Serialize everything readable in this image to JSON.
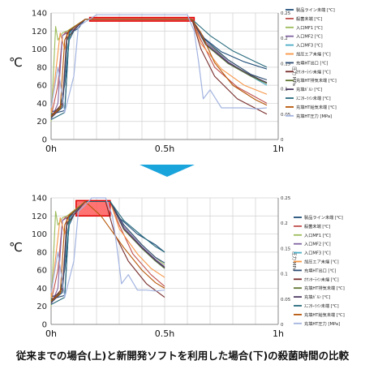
{
  "caption": "従来までの場合(上)と新開発ソフトを利用した場合(下)の殺菌時間の比較",
  "colors": {
    "arrow": "#1aa4dc",
    "highlight_fill": "#ff5a5a",
    "highlight_stroke": "#e00000",
    "grid": "#d0d0d0",
    "axis": "#888888"
  },
  "chart_data": [
    {
      "type": "line",
      "ylabel": "℃",
      "ylim": [
        0,
        140
      ],
      "yticks": [
        0,
        20,
        40,
        60,
        80,
        100,
        120,
        140
      ],
      "xlim": [
        0,
        1
      ],
      "xticks": [
        {
          "v": 0,
          "label": "0h"
        },
        {
          "v": 0.5,
          "label": "0.5h"
        },
        {
          "v": 1,
          "label": "1h"
        }
      ],
      "y2label": "圧力 MPa",
      "y2lim": [
        0,
        0.25
      ],
      "y2ticks": [
        "0",
        "0.05",
        "0.1",
        "0.15",
        "0.2",
        "0.25"
      ],
      "highlight": {
        "x": [
          0.17,
          0.63
        ],
        "y": [
          131,
          135
        ]
      },
      "series": [
        {
          "name": "製品ライン未端 [℃]",
          "color": "#1f4e79",
          "x": [
            0,
            0.04,
            0.06,
            0.08,
            0.1,
            0.12,
            0.15,
            0.62,
            0.66,
            0.75,
            0.85,
            0.95
          ],
          "y": [
            30,
            35,
            60,
            110,
            120,
            123,
            133,
            133,
            115,
            97,
            86,
            78
          ]
        },
        {
          "name": "殺菌未端 [℃]",
          "color": "#c0504d",
          "x": [
            0,
            0.03,
            0.05,
            0.07,
            0.1,
            0.15,
            0.62,
            0.66,
            0.72,
            0.82,
            0.95
          ],
          "y": [
            25,
            60,
            115,
            120,
            122,
            133,
            133,
            110,
            80,
            58,
            40
          ]
        },
        {
          "name": "入口MF1 [℃]",
          "color": "#9bbb59",
          "x": [
            0,
            0.02,
            0.03,
            0.05,
            0.07,
            0.15,
            0.62,
            0.68,
            0.78,
            0.88,
            0.95
          ],
          "y": [
            20,
            125,
            110,
            118,
            120,
            133,
            133,
            108,
            88,
            72,
            62
          ]
        },
        {
          "name": "入口MF2 [℃]",
          "color": "#8064a2",
          "x": [
            0,
            0.03,
            0.05,
            0.07,
            0.1,
            0.15,
            0.62,
            0.68,
            0.78,
            0.88,
            0.95
          ],
          "y": [
            22,
            40,
            115,
            118,
            121,
            133,
            133,
            108,
            86,
            70,
            62
          ]
        },
        {
          "name": "入口MF3 [℃]",
          "color": "#4bacc6",
          "x": [
            0,
            0.05,
            0.07,
            0.09,
            0.15,
            0.62,
            0.68,
            0.78,
            0.88,
            0.95
          ],
          "y": [
            25,
            35,
            100,
            122,
            133,
            133,
            106,
            84,
            70,
            60
          ]
        },
        {
          "name": "加圧エア未端 [℃]",
          "color": "#f79646",
          "x": [
            0,
            0.04,
            0.06,
            0.08,
            0.15,
            0.62,
            0.66,
            0.75,
            0.85,
            0.95
          ],
          "y": [
            30,
            118,
            100,
            120,
            133,
            133,
            106,
            78,
            60,
            50
          ]
        },
        {
          "name": "充填HT出口 [℃]",
          "color": "#2c4d75",
          "x": [
            0,
            0.06,
            0.08,
            0.1,
            0.15,
            0.62,
            0.68,
            0.78,
            0.88,
            0.95
          ],
          "y": [
            28,
            32,
            120,
            124,
            133,
            133,
            110,
            88,
            72,
            66
          ]
        },
        {
          "name": "ｶｳﾝﾀｰﾗｲﾝ未端 [℃]",
          "color": "#772c2a",
          "x": [
            0,
            0.05,
            0.07,
            0.09,
            0.15,
            0.62,
            0.66,
            0.72,
            0.82,
            0.95
          ],
          "y": [
            26,
            40,
            118,
            122,
            133,
            133,
            100,
            70,
            45,
            28
          ]
        },
        {
          "name": "充填HT排気未端 [℃]",
          "color": "#5f7530",
          "x": [
            0,
            0.05,
            0.07,
            0.1,
            0.15,
            0.62,
            0.68,
            0.78,
            0.88,
            0.95
          ],
          "y": [
            25,
            38,
            110,
            121,
            133,
            133,
            105,
            84,
            70,
            62
          ]
        },
        {
          "name": "充填ｶﾞﾙﾝ [℃]",
          "color": "#4d3b62",
          "x": [
            0,
            0.05,
            0.07,
            0.1,
            0.15,
            0.62,
            0.68,
            0.78,
            0.88,
            0.95
          ],
          "y": [
            24,
            36,
            112,
            121,
            133,
            133,
            106,
            85,
            71,
            63
          ]
        },
        {
          "name": "ｽﾆﾌﾀｰﾗｲﾝ未端 [℃]",
          "color": "#276a7c",
          "x": [
            0,
            0.06,
            0.08,
            0.1,
            0.15,
            0.62,
            0.7,
            0.8,
            0.9,
            0.95
          ],
          "y": [
            22,
            30,
            118,
            124,
            133,
            133,
            115,
            98,
            86,
            80
          ]
        },
        {
          "name": "充填HT給気未端 [℃]",
          "color": "#b65708",
          "x": [
            0,
            0.04,
            0.06,
            0.08,
            0.15,
            0.62,
            0.66,
            0.72,
            0.8,
            0.9,
            0.95
          ],
          "y": [
            26,
            34,
            110,
            121,
            133,
            133,
            118,
            85,
            60,
            44,
            38
          ]
        },
        {
          "name": "充填HT圧力 [MPa]",
          "color": "#a3b4e0",
          "x": [
            0,
            0.03,
            0.06,
            0.1,
            0.12,
            0.15,
            0.2,
            0.4,
            0.6,
            0.63,
            0.65,
            0.67,
            0.7,
            0.75,
            0.8,
            0.85,
            0.9,
            0.95
          ],
          "y": [
            35,
            80,
            30,
            70,
            125,
            130,
            138,
            138,
            138,
            120,
            85,
            45,
            55,
            35,
            35,
            35,
            34,
            35
          ]
        }
      ]
    },
    {
      "type": "line",
      "ylabel": "℃",
      "ylim": [
        0,
        140
      ],
      "yticks": [
        0,
        20,
        40,
        60,
        80,
        100,
        120,
        140
      ],
      "xlim": [
        0,
        1
      ],
      "xticks": [
        {
          "v": 0,
          "label": "0h"
        },
        {
          "v": 0.5,
          "label": "0.5h"
        },
        {
          "v": 1,
          "label": "1h"
        }
      ],
      "y2label": "圧力 MPa",
      "y2lim": [
        0,
        0.25
      ],
      "y2ticks": [
        "0",
        "0.05",
        "0.1",
        "0.15",
        "0.2",
        "0.25"
      ],
      "highlight": {
        "x": [
          0.11,
          0.26
        ],
        "y": [
          120,
          137
        ]
      },
      "series": [
        {
          "name": "製品ライン未端 [℃]",
          "color": "#1f4e79",
          "x": [
            0,
            0.04,
            0.06,
            0.08,
            0.1,
            0.15,
            0.26,
            0.3,
            0.38,
            0.46,
            0.5
          ],
          "y": [
            30,
            35,
            60,
            110,
            121,
            136,
            136,
            118,
            100,
            88,
            80
          ]
        },
        {
          "name": "殺菌未端 [℃]",
          "color": "#c0504d",
          "x": [
            0,
            0.03,
            0.05,
            0.07,
            0.1,
            0.15,
            0.26,
            0.3,
            0.36,
            0.44,
            0.5
          ],
          "y": [
            25,
            60,
            115,
            120,
            122,
            136,
            136,
            110,
            78,
            55,
            42
          ]
        },
        {
          "name": "入口MF1 [℃]",
          "color": "#9bbb59",
          "x": [
            0,
            0.02,
            0.03,
            0.05,
            0.07,
            0.15,
            0.26,
            0.32,
            0.4,
            0.46,
            0.5
          ],
          "y": [
            20,
            125,
            110,
            118,
            120,
            136,
            136,
            110,
            88,
            74,
            66
          ]
        },
        {
          "name": "入口MF2 [℃]",
          "color": "#8064a2",
          "x": [
            0,
            0.03,
            0.05,
            0.07,
            0.1,
            0.15,
            0.26,
            0.32,
            0.4,
            0.46,
            0.5
          ],
          "y": [
            22,
            40,
            115,
            118,
            121,
            136,
            136,
            108,
            86,
            72,
            64
          ]
        },
        {
          "name": "入口MF3 [℃]",
          "color": "#4bacc6",
          "x": [
            0,
            0.05,
            0.07,
            0.09,
            0.15,
            0.26,
            0.32,
            0.4,
            0.46,
            0.5
          ],
          "y": [
            25,
            35,
            100,
            122,
            136,
            136,
            106,
            84,
            70,
            62
          ]
        },
        {
          "name": "加圧エア未端 [℃]",
          "color": "#f79646",
          "x": [
            0,
            0.04,
            0.06,
            0.08,
            0.15,
            0.26,
            0.3,
            0.38,
            0.44,
            0.5
          ],
          "y": [
            30,
            118,
            100,
            120,
            136,
            136,
            106,
            78,
            62,
            52
          ]
        },
        {
          "name": "充填HT出口 [℃]",
          "color": "#2c4d75",
          "x": [
            0,
            0.06,
            0.08,
            0.1,
            0.15,
            0.26,
            0.32,
            0.4,
            0.46,
            0.5
          ],
          "y": [
            28,
            32,
            120,
            124,
            136,
            136,
            110,
            88,
            74,
            68
          ]
        },
        {
          "name": "ｶｳﾝﾀｰﾗｲﾝ未端 [℃]",
          "color": "#772c2a",
          "x": [
            0,
            0.05,
            0.07,
            0.09,
            0.15,
            0.24,
            0.28,
            0.34,
            0.42,
            0.5
          ],
          "y": [
            26,
            40,
            118,
            122,
            136,
            136,
            100,
            70,
            45,
            30
          ]
        },
        {
          "name": "充填HT排気未端 [℃]",
          "color": "#5f7530",
          "x": [
            0,
            0.05,
            0.07,
            0.1,
            0.15,
            0.26,
            0.32,
            0.4,
            0.46,
            0.5
          ],
          "y": [
            25,
            38,
            110,
            121,
            136,
            136,
            105,
            84,
            70,
            62
          ]
        },
        {
          "name": "充填ｶﾞﾙﾝ [℃]",
          "color": "#4d3b62",
          "x": [
            0,
            0.05,
            0.07,
            0.1,
            0.15,
            0.26,
            0.32,
            0.4,
            0.46,
            0.5
          ],
          "y": [
            24,
            36,
            112,
            121,
            136,
            136,
            106,
            85,
            71,
            63
          ]
        },
        {
          "name": "ｽﾆﾌﾀｰﾗｲﾝ未端 [℃]",
          "color": "#276a7c",
          "x": [
            0,
            0.06,
            0.08,
            0.1,
            0.15,
            0.26,
            0.32,
            0.4,
            0.46,
            0.5
          ],
          "y": [
            22,
            30,
            118,
            124,
            136,
            136,
            115,
            98,
            86,
            80
          ]
        },
        {
          "name": "充填HT給気未端 [℃]",
          "color": "#b65708",
          "x": [
            0,
            0.04,
            0.06,
            0.08,
            0.15,
            0.22,
            0.26,
            0.32,
            0.4,
            0.46,
            0.5
          ],
          "y": [
            26,
            34,
            110,
            121,
            136,
            120,
            106,
            85,
            60,
            46,
            40
          ]
        },
        {
          "name": "充填HT圧力 [MPa]",
          "color": "#a3b4e0",
          "x": [
            0,
            0.03,
            0.06,
            0.1,
            0.12,
            0.15,
            0.18,
            0.24,
            0.27,
            0.29,
            0.31,
            0.34,
            0.38,
            0.42,
            0.46,
            0.5
          ],
          "y": [
            35,
            80,
            30,
            70,
            125,
            132,
            140,
            140,
            120,
            85,
            45,
            55,
            38,
            38,
            37,
            38
          ]
        }
      ]
    }
  ]
}
